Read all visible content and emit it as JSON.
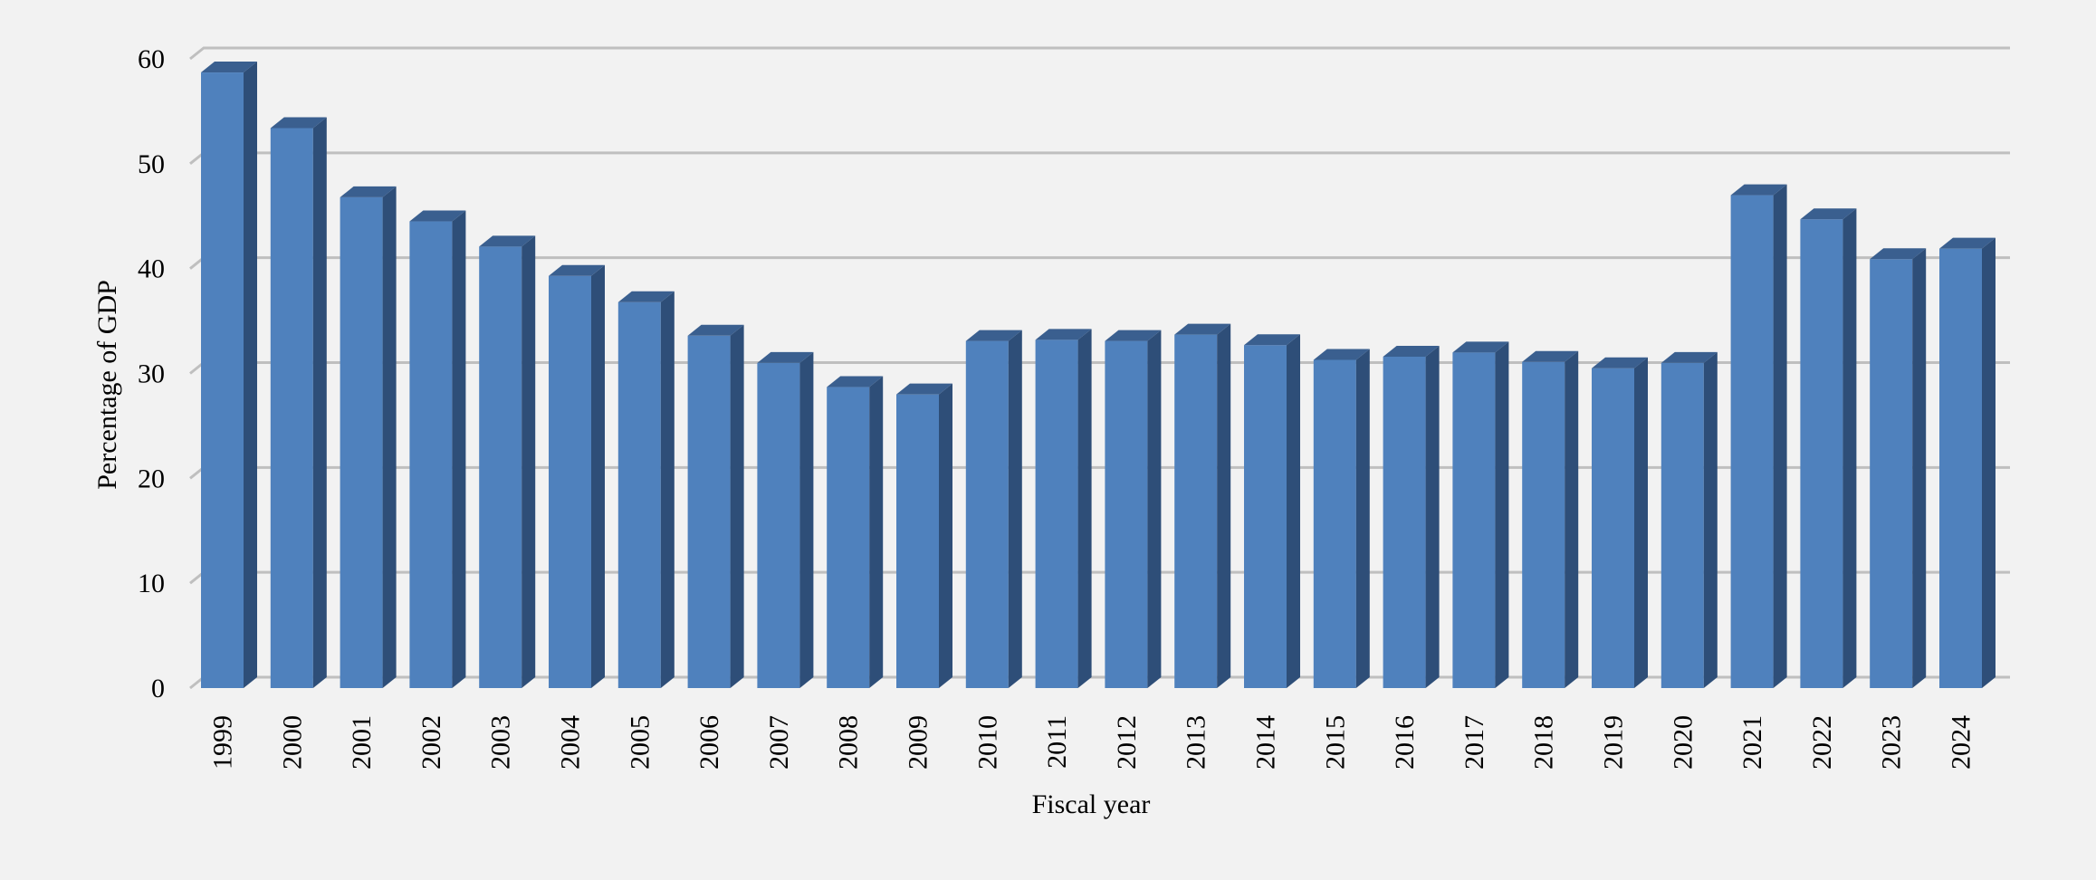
{
  "chart_data": {
    "type": "bar",
    "title": "",
    "xlabel": "Fiscal year",
    "ylabel": "Percentage of GDP",
    "ylim": [
      0,
      60
    ],
    "yticks": [
      0,
      10,
      20,
      30,
      40,
      50,
      60
    ],
    "grid": true,
    "style": "3d-column",
    "colors": {
      "bar_front": "#4f81bd",
      "bar_side": "#2e4e78",
      "bar_top": "#3a5f8f",
      "grid": "#bfbfbf",
      "background": "#f2f2f2"
    },
    "categories": [
      "1999",
      "2000",
      "2001",
      "2002",
      "2003",
      "2004",
      "2005",
      "2006",
      "2007",
      "2008",
      "2009",
      "2010",
      "2011",
      "2012",
      "2013",
      "2014",
      "2015",
      "2016",
      "2017",
      "2018",
      "2019",
      "2020",
      "2021",
      "2022",
      "2023",
      "2024"
    ],
    "values": [
      58.7,
      53.4,
      46.8,
      44.5,
      42.1,
      39.3,
      36.8,
      33.6,
      31.0,
      28.7,
      28.0,
      33.1,
      33.2,
      33.1,
      33.7,
      32.7,
      31.3,
      31.6,
      32.0,
      31.1,
      30.5,
      31.0,
      47.0,
      44.7,
      40.9,
      41.9
    ]
  }
}
